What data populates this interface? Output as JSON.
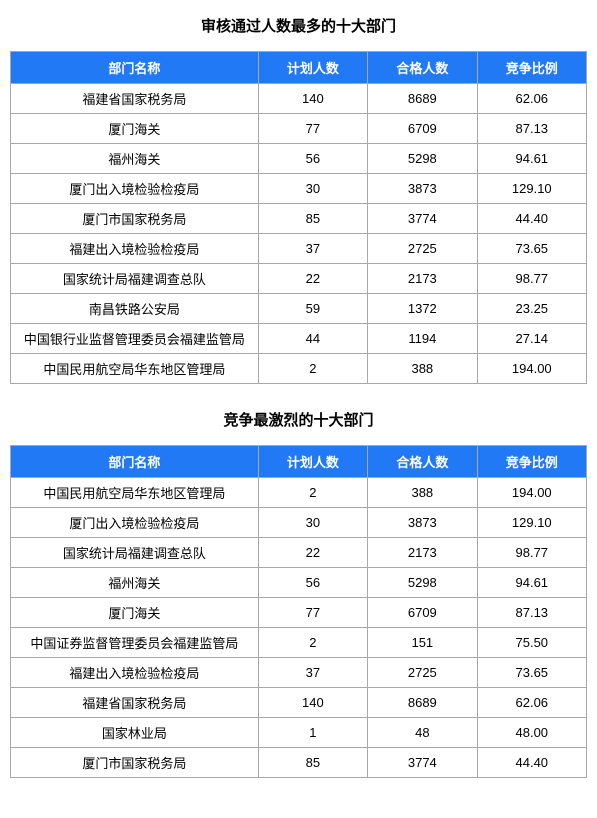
{
  "table1": {
    "title": "审核通过人数最多的十大部门",
    "columns": [
      "部门名称",
      "计划人数",
      "合格人数",
      "竞争比例"
    ],
    "header_bg_color": "#2279f5",
    "header_text_color": "#ffffff",
    "border_color": "#a8a8a8",
    "cell_bg_color": "#ffffff",
    "cell_text_color": "#000000",
    "title_fontsize": 15,
    "cell_fontsize": 13,
    "rows": [
      [
        "福建省国家税务局",
        "140",
        "8689",
        "62.06"
      ],
      [
        "厦门海关",
        "77",
        "6709",
        "87.13"
      ],
      [
        "福州海关",
        "56",
        "5298",
        "94.61"
      ],
      [
        "厦门出入境检验检疫局",
        "30",
        "3873",
        "129.10"
      ],
      [
        "厦门市国家税务局",
        "85",
        "3774",
        "44.40"
      ],
      [
        "福建出入境检验检疫局",
        "37",
        "2725",
        "73.65"
      ],
      [
        "国家统计局福建调查总队",
        "22",
        "2173",
        "98.77"
      ],
      [
        "南昌铁路公安局",
        "59",
        "1372",
        "23.25"
      ],
      [
        "中国银行业监督管理委员会福建监管局",
        "44",
        "1194",
        "27.14"
      ],
      [
        "中国民用航空局华东地区管理局",
        "2",
        "388",
        "194.00"
      ]
    ]
  },
  "table2": {
    "title": "竞争最激烈的十大部门",
    "columns": [
      "部门名称",
      "计划人数",
      "合格人数",
      "竞争比例"
    ],
    "header_bg_color": "#2279f5",
    "header_text_color": "#ffffff",
    "border_color": "#a8a8a8",
    "cell_bg_color": "#ffffff",
    "cell_text_color": "#000000",
    "title_fontsize": 15,
    "cell_fontsize": 13,
    "rows": [
      [
        "中国民用航空局华东地区管理局",
        "2",
        "388",
        "194.00"
      ],
      [
        "厦门出入境检验检疫局",
        "30",
        "3873",
        "129.10"
      ],
      [
        "国家统计局福建调查总队",
        "22",
        "2173",
        "98.77"
      ],
      [
        "福州海关",
        "56",
        "5298",
        "94.61"
      ],
      [
        "厦门海关",
        "77",
        "6709",
        "87.13"
      ],
      [
        "中国证券监督管理委员会福建监管局",
        "2",
        "151",
        "75.50"
      ],
      [
        "福建出入境检验检疫局",
        "37",
        "2725",
        "73.65"
      ],
      [
        "福建省国家税务局",
        "140",
        "8689",
        "62.06"
      ],
      [
        "国家林业局",
        "1",
        "48",
        "48.00"
      ],
      [
        "厦门市国家税务局",
        "85",
        "3774",
        "44.40"
      ]
    ]
  }
}
